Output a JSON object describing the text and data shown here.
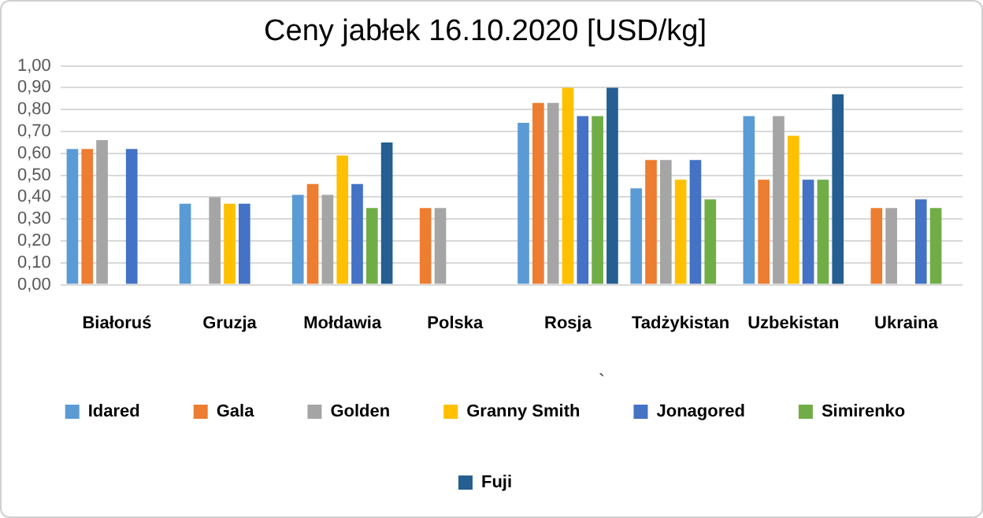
{
  "chart_data": {
    "type": "bar",
    "title": "Ceny jabłek 16.10.2020 [USD/kg]",
    "categories": [
      "Białoruś",
      "Gruzja",
      "Mołdawia",
      "Polska",
      "Rosja",
      "Tadżykistan",
      "Uzbekistan",
      "Ukraina"
    ],
    "series": [
      {
        "name": "Idared",
        "color": "#5b9bd5",
        "values": [
          0.62,
          0.37,
          0.41,
          null,
          0.74,
          0.44,
          0.77,
          null
        ]
      },
      {
        "name": "Gala",
        "color": "#ed7d31",
        "values": [
          0.62,
          null,
          0.46,
          0.35,
          0.83,
          0.57,
          0.48,
          0.35
        ]
      },
      {
        "name": "Golden",
        "color": "#a5a5a5",
        "values": [
          0.66,
          0.4,
          0.41,
          0.35,
          0.83,
          0.57,
          0.77,
          0.35
        ]
      },
      {
        "name": "Granny Smith",
        "color": "#ffc000",
        "values": [
          null,
          0.37,
          0.59,
          null,
          0.9,
          0.48,
          0.68,
          null
        ]
      },
      {
        "name": "Jonagored",
        "color": "#4472c4",
        "values": [
          0.62,
          0.37,
          0.46,
          null,
          0.77,
          0.57,
          0.48,
          0.39
        ]
      },
      {
        "name": "Simirenko",
        "color": "#70ad47",
        "values": [
          null,
          null,
          0.35,
          null,
          0.77,
          0.39,
          0.48,
          0.35
        ]
      },
      {
        "name": "Fuji",
        "color": "#255e91",
        "values": [
          null,
          null,
          0.65,
          null,
          0.9,
          null,
          0.87,
          null
        ]
      }
    ],
    "ylim": [
      0,
      1
    ],
    "yticks": [
      {
        "value": 0,
        "label": "0,00"
      },
      {
        "value": 0.1,
        "label": "0,10"
      },
      {
        "value": 0.2,
        "label": "0,20"
      },
      {
        "value": 0.3,
        "label": "0,30"
      },
      {
        "value": 0.4,
        "label": "0,40"
      },
      {
        "value": 0.5,
        "label": "0,50"
      },
      {
        "value": 0.6,
        "label": "0,60"
      },
      {
        "value": 0.7,
        "label": "0,70"
      },
      {
        "value": 0.8,
        "label": "0,80"
      },
      {
        "value": 0.9,
        "label": "0,90"
      },
      {
        "value": 1,
        "label": "1,00"
      }
    ],
    "grid": "y",
    "legend": "bottom",
    "annotations": [
      "`"
    ]
  }
}
